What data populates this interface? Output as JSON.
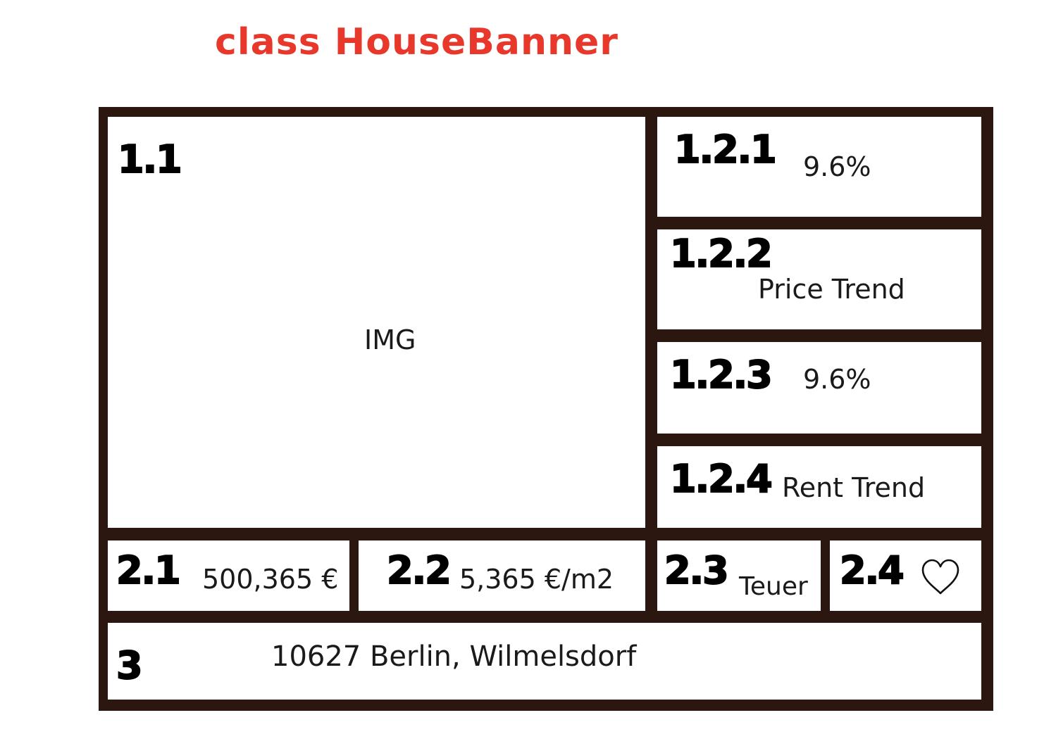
{
  "title": "class HouseBanner",
  "cells": {
    "c1_1": {
      "label": "1.1",
      "text": "IMG"
    },
    "c1_2_1": {
      "label": "1.2.1",
      "text": "9.6%"
    },
    "c1_2_2": {
      "label": "1.2.2",
      "text": "Price Trend"
    },
    "c1_2_3": {
      "label": "1.2.3",
      "text": "9.6%"
    },
    "c1_2_4": {
      "label": "1.2.4",
      "text": "Rent Trend"
    },
    "c2_1": {
      "label": "2.1",
      "text": "500,365 €"
    },
    "c2_2": {
      "label": "2.2",
      "text": "5,365 €/m2"
    },
    "c2_3": {
      "label": "2.3",
      "text": "Teuer"
    },
    "c2_4": {
      "label": "2.4",
      "icon": "heart-outline-icon"
    },
    "c3": {
      "label": "3",
      "text": "10627 Berlin, Wilmelsdorf"
    }
  },
  "colors": {
    "title": "#e8382c",
    "frame": "#2b1710"
  }
}
